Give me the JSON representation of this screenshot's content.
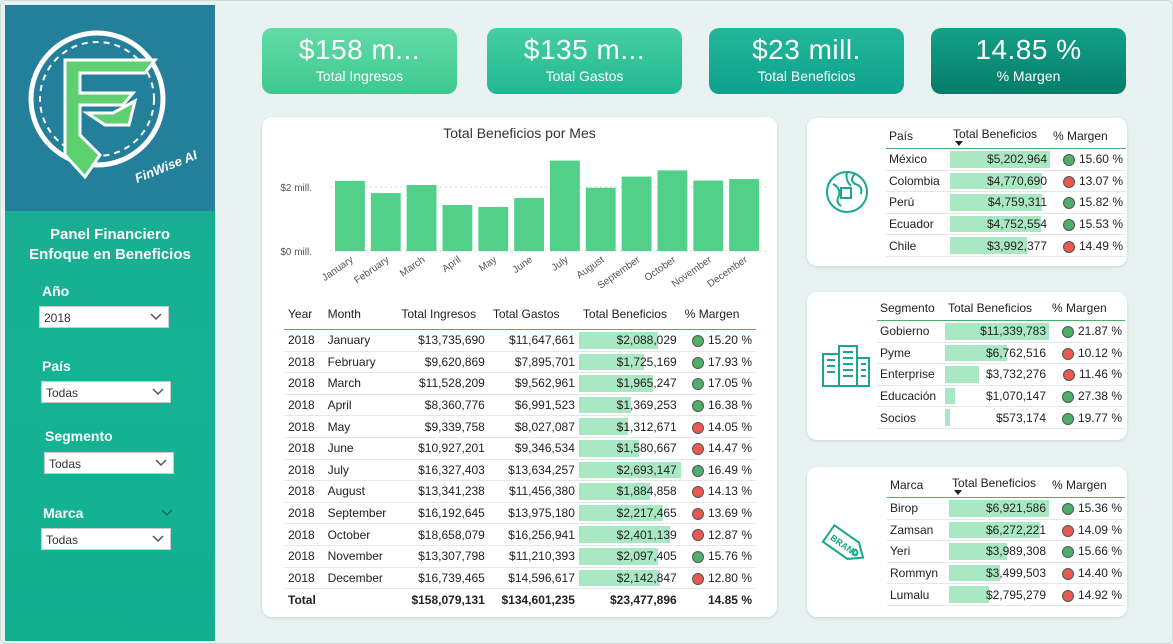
{
  "sidebar": {
    "brand": "FinWise AI",
    "title1": "Panel Financiero",
    "title2": "Enfoque en Beneficios",
    "filters": [
      {
        "label": "Año",
        "value": "2018"
      },
      {
        "label": "País",
        "value": "Todas"
      },
      {
        "label": "Segmento",
        "value": "Todas"
      },
      {
        "label": "Marca",
        "value": "Todas"
      }
    ]
  },
  "kpis": [
    {
      "value": "$158 m...",
      "label": "Total Ingresos"
    },
    {
      "value": "$135 m...",
      "label": "Total Gastos"
    },
    {
      "value": "$23 mill.",
      "label": "Total Beneficios"
    },
    {
      "value": "14.85 %",
      "label": "% Margen"
    }
  ],
  "chart_data": {
    "type": "bar",
    "title": "Total Beneficios por Mes",
    "categories": [
      "January",
      "February",
      "March",
      "April",
      "May",
      "June",
      "July",
      "August",
      "September",
      "October",
      "November",
      "December"
    ],
    "values": [
      2088029,
      1725169,
      1965247,
      1369253,
      1312671,
      1580667,
      2693147,
      1884858,
      2217465,
      2401139,
      2097405,
      2142847
    ],
    "y_ticks": [
      "$2 mill.",
      "$0 mill."
    ],
    "ylim": [
      0,
      2800000
    ],
    "grid": true,
    "color": "#52cf89"
  },
  "month_table": {
    "headers": [
      "Year",
      "Month",
      "Total Ingresos",
      "Total Gastos",
      "Total Beneficios",
      "% Margen"
    ],
    "rows": [
      {
        "year": "2018",
        "month": "January",
        "ing": "$13,735,690",
        "gas": "$11,647,661",
        "ben": "$2,088,029",
        "ben_v": 2088029,
        "mar": "15.20 %",
        "status": "g"
      },
      {
        "year": "2018",
        "month": "February",
        "ing": "$9,620,869",
        "gas": "$7,895,701",
        "ben": "$1,725,169",
        "ben_v": 1725169,
        "mar": "17.93 %",
        "status": "g"
      },
      {
        "year": "2018",
        "month": "March",
        "ing": "$11,528,209",
        "gas": "$9,562,961",
        "ben": "$1,965,247",
        "ben_v": 1965247,
        "mar": "17.05 %",
        "status": "g"
      },
      {
        "year": "2018",
        "month": "April",
        "ing": "$8,360,776",
        "gas": "$6,991,523",
        "ben": "$1,369,253",
        "ben_v": 1369253,
        "mar": "16.38 %",
        "status": "g"
      },
      {
        "year": "2018",
        "month": "May",
        "ing": "$9,339,758",
        "gas": "$8,027,087",
        "ben": "$1,312,671",
        "ben_v": 1312671,
        "mar": "14.05 %",
        "status": "r"
      },
      {
        "year": "2018",
        "month": "June",
        "ing": "$10,927,201",
        "gas": "$9,346,534",
        "ben": "$1,580,667",
        "ben_v": 1580667,
        "mar": "14.47 %",
        "status": "r"
      },
      {
        "year": "2018",
        "month": "July",
        "ing": "$16,327,403",
        "gas": "$13,634,257",
        "ben": "$2,693,147",
        "ben_v": 2693147,
        "mar": "16.49 %",
        "status": "g"
      },
      {
        "year": "2018",
        "month": "August",
        "ing": "$13,341,238",
        "gas": "$11,456,380",
        "ben": "$1,884,858",
        "ben_v": 1884858,
        "mar": "14.13 %",
        "status": "r"
      },
      {
        "year": "2018",
        "month": "September",
        "ing": "$16,192,645",
        "gas": "$13,975,180",
        "ben": "$2,217,465",
        "ben_v": 2217465,
        "mar": "13.69 %",
        "status": "r"
      },
      {
        "year": "2018",
        "month": "October",
        "ing": "$18,658,079",
        "gas": "$16,256,941",
        "ben": "$2,401,139",
        "ben_v": 2401139,
        "mar": "12.87 %",
        "status": "r"
      },
      {
        "year": "2018",
        "month": "November",
        "ing": "$13,307,798",
        "gas": "$11,210,393",
        "ben": "$2,097,405",
        "ben_v": 2097405,
        "mar": "15.76 %",
        "status": "g"
      },
      {
        "year": "2018",
        "month": "December",
        "ing": "$16,739,465",
        "gas": "$14,596,617",
        "ben": "$2,142,847",
        "ben_v": 2142847,
        "mar": "12.80 %",
        "status": "r"
      }
    ],
    "total": {
      "label": "Total",
      "ing": "$158,079,131",
      "gas": "$134,601,235",
      "ben": "$23,477,896",
      "mar": "14.85 %"
    }
  },
  "country_table": {
    "headers": [
      "País",
      "Total Beneficios",
      "% Margen"
    ],
    "max": 5202964,
    "rows": [
      {
        "name": "México",
        "ben": "$5,202,964",
        "v": 5202964,
        "mar": "15.60 %",
        "status": "g"
      },
      {
        "name": "Colombia",
        "ben": "$4,770,690",
        "v": 4770690,
        "mar": "13.07 %",
        "status": "r"
      },
      {
        "name": "Perú",
        "ben": "$4,759,311",
        "v": 4759311,
        "mar": "15.82 %",
        "status": "g"
      },
      {
        "name": "Ecuador",
        "ben": "$4,752,554",
        "v": 4752554,
        "mar": "15.53 %",
        "status": "g"
      },
      {
        "name": "Chile",
        "ben": "$3,992,377",
        "v": 3992377,
        "mar": "14.49 %",
        "status": "r"
      }
    ]
  },
  "segment_table": {
    "headers": [
      "Segmento",
      "Total Beneficios",
      "% Margen"
    ],
    "max": 11339783,
    "rows": [
      {
        "name": "Gobierno",
        "ben": "$11,339,783",
        "v": 11339783,
        "mar": "21.87 %",
        "status": "g"
      },
      {
        "name": "Pyme",
        "ben": "$6,762,516",
        "v": 6762516,
        "mar": "10.12 %",
        "status": "r"
      },
      {
        "name": "Enterprise",
        "ben": "$3,732,276",
        "v": 3732276,
        "mar": "11.46 %",
        "status": "r"
      },
      {
        "name": "Educación",
        "ben": "$1,070,147",
        "v": 1070147,
        "mar": "27.38 %",
        "status": "g"
      },
      {
        "name": "Socios",
        "ben": "$573,174",
        "v": 573174,
        "mar": "19.77 %",
        "status": "g"
      }
    ]
  },
  "brand_table": {
    "headers": [
      "Marca",
      "Total Beneficios",
      "% Margen"
    ],
    "max": 6921586,
    "rows": [
      {
        "name": "Birop",
        "ben": "$6,921,586",
        "v": 6921586,
        "mar": "15.36 %",
        "status": "g"
      },
      {
        "name": "Zamsan",
        "ben": "$6,272,221",
        "v": 6272221,
        "mar": "14.09 %",
        "status": "r"
      },
      {
        "name": "Yeri",
        "ben": "$3,989,308",
        "v": 3989308,
        "mar": "15.66 %",
        "status": "g"
      },
      {
        "name": "Rommyn",
        "ben": "$3,499,503",
        "v": 3499503,
        "mar": "14.40 %",
        "status": "r"
      },
      {
        "name": "Lumalu",
        "ben": "$2,795,279",
        "v": 2795279,
        "mar": "14.92 %",
        "status": "r"
      }
    ]
  },
  "icons": {
    "country": "globe-icon",
    "segment": "buildings-icon",
    "brand": "brand-tag-icon",
    "dropdown": "chevron-down-icon"
  },
  "colors": {
    "sidebar": "#14b394",
    "logo_bg": "#237f9a",
    "kpi1": "#4cd29a",
    "kpi2": "#2fbf9c",
    "kpi3": "#12a894",
    "kpi4": "#0a8d7a",
    "bar": "#52cf89",
    "bar_bg": "#a9e8c2",
    "good": "#4caf6a",
    "bad": "#e85a4f"
  }
}
